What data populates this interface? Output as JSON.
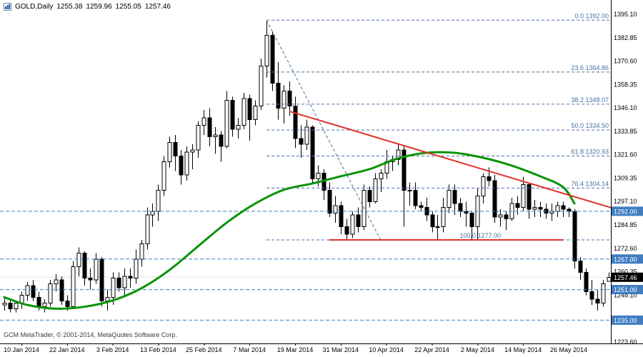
{
  "header": {
    "symbol_period": "GOLD,Daily",
    "open": "1255.38",
    "high": "1259.96",
    "low": "1255.05",
    "close": "1257.46"
  },
  "footer": {
    "copyright": "GCM MetaTrader, © 2001-2014, MetaQuotes Software Corp."
  },
  "colors": {
    "background": "#ffffff",
    "fib": "#4a6fa5",
    "level_line": "#3f7cc0",
    "tag_bg": "#3f7cc0",
    "tag_text": "#ffffff",
    "current_tag_bg": "#000000",
    "ma": "#089408",
    "trend": "#e03127",
    "axis_text": "#000000",
    "candle": "#000000",
    "candle_up_fill": "#ffffff"
  },
  "chart_data": {
    "type": "candlestick",
    "symbol": "GOLD",
    "timeframe": "Daily",
    "grid": "off",
    "current_price": {
      "value": 1257.46,
      "tag": "1257.46"
    },
    "y_axis": {
      "max_price": 1395.1,
      "min_price": 1223.6,
      "labels": [
        "1395.10",
        "1382.85",
        "1370.60",
        "1358.35",
        "1346.10",
        "1333.85",
        "1321.60",
        "1309.35",
        "1297.10",
        "1284.85",
        "1272.60",
        "1260.35",
        "1248.10",
        "1235.85",
        "1223.60"
      ]
    },
    "x_axis": {
      "labels": [
        {
          "text": "10 Jan 2014",
          "i": 3
        },
        {
          "text": "22 Jan 2014",
          "i": 11
        },
        {
          "text": "3 Feb 2014",
          "i": 19
        },
        {
          "text": "13 Feb 2014",
          "i": 27
        },
        {
          "text": "25 Feb 2014",
          "i": 35
        },
        {
          "text": "7 Mar 2014",
          "i": 43
        },
        {
          "text": "19 Mar 2014",
          "i": 51
        },
        {
          "text": "31 Mar 2014",
          "i": 59
        },
        {
          "text": "10 Apr 2014",
          "i": 67
        },
        {
          "text": "22 Apr 2014",
          "i": 75
        },
        {
          "text": "2 May 2014",
          "i": 83
        },
        {
          "text": "14 May 2014",
          "i": 91
        },
        {
          "text": "26 May 2014",
          "i": 99
        }
      ]
    },
    "fibonacci": {
      "anchor1": {
        "i": 46,
        "price": 1392.0
      },
      "anchor2": {
        "i": 66,
        "price": 1277.0
      },
      "levels": [
        {
          "label": "0.0 1392.00",
          "price": 1392.0
        },
        {
          "label": "23.6 1364.86",
          "price": 1364.86
        },
        {
          "label": "38.2 1348.07",
          "price": 1348.07
        },
        {
          "label": "50.0 1334.50",
          "price": 1334.5
        },
        {
          "label": "61.8 1320.93",
          "price": 1320.93
        },
        {
          "label": "76.4 1304.14",
          "price": 1304.14
        },
        {
          "label": "100.0 1277.00",
          "price": 1277.0,
          "label_x": 701
        }
      ]
    },
    "horizontal_levels": [
      {
        "price": 1292.0,
        "tag": "1292.00"
      },
      {
        "price": 1267.0,
        "tag": "1267.00"
      },
      {
        "price": 1251.0,
        "tag": "1251.00"
      },
      {
        "price": 1235.0,
        "tag": "1235.00"
      }
    ],
    "support_line": {
      "price": 1277.0,
      "i1": 57,
      "i2": 98
    },
    "trend_line": {
      "i1": 50,
      "p1": 1344.3,
      "i2": 106.5,
      "p2": 1293.8
    },
    "ma": {
      "points": [
        [
          0,
          1247
        ],
        [
          4,
          1243
        ],
        [
          9,
          1241
        ],
        [
          14,
          1242
        ],
        [
          19,
          1245.3
        ],
        [
          24,
          1251.6
        ],
        [
          29,
          1261.3
        ],
        [
          34,
          1273.7
        ],
        [
          39,
          1286
        ],
        [
          44,
          1296
        ],
        [
          49,
          1303.2
        ],
        [
          54,
          1306.5
        ],
        [
          59,
          1310.3
        ],
        [
          64,
          1314
        ],
        [
          69,
          1319.6
        ],
        [
          74,
          1322.6
        ],
        [
          79,
          1322.6
        ],
        [
          84,
          1320
        ],
        [
          89,
          1315.9
        ],
        [
          94,
          1310.3
        ],
        [
          98,
          1304.7
        ],
        [
          100,
          1296.1
        ]
      ]
    },
    "candles_columns": [
      "date",
      "open",
      "high",
      "low",
      "close"
    ],
    "candles": [
      [
        "7 Jan 2014",
        1243,
        1247,
        1240,
        1244
      ],
      [
        "8 Jan 2014",
        1244,
        1246,
        1239,
        1241
      ],
      [
        "9 Jan 2014",
        1241,
        1245,
        1239,
        1244
      ],
      [
        "10 Jan 2014",
        1244,
        1250,
        1241,
        1248
      ],
      [
        "13 Jan 2014",
        1248,
        1255,
        1245,
        1253
      ],
      [
        "14 Jan 2014",
        1253,
        1256,
        1245,
        1247
      ],
      [
        "15 Jan 2014",
        1247,
        1250,
        1240,
        1242
      ],
      [
        "16 Jan 2014",
        1242,
        1246,
        1239,
        1244
      ],
      [
        "17 Jan 2014",
        1244,
        1256,
        1242,
        1254
      ],
      [
        "20 Jan 2014",
        1254,
        1259,
        1250,
        1256
      ],
      [
        "21 Jan 2014",
        1256,
        1258,
        1243,
        1245
      ],
      [
        "22 Jan 2014",
        1245,
        1248,
        1240,
        1242
      ],
      [
        "23 Jan 2014",
        1242,
        1266,
        1241,
        1263
      ],
      [
        "24 Jan 2014",
        1263,
        1273,
        1258,
        1270
      ],
      [
        "27 Jan 2014",
        1270,
        1271,
        1253,
        1257
      ],
      [
        "28 Jan 2014",
        1257,
        1262,
        1251,
        1256
      ],
      [
        "29 Jan 2014",
        1256,
        1270,
        1254,
        1267
      ],
      [
        "30 Jan 2014",
        1267,
        1268,
        1242,
        1245
      ],
      [
        "31 Jan 2014",
        1245,
        1251,
        1240,
        1247
      ],
      [
        "3 Feb 2014",
        1247,
        1260,
        1243,
        1257
      ],
      [
        "4 Feb 2014",
        1257,
        1260,
        1250,
        1252
      ],
      [
        "5 Feb 2014",
        1252,
        1262,
        1248,
        1258
      ],
      [
        "6 Feb 2014",
        1258,
        1262,
        1252,
        1257
      ],
      [
        "7 Feb 2014",
        1257,
        1272,
        1254,
        1267
      ],
      [
        "10 Feb 2014",
        1267,
        1277,
        1263,
        1275
      ],
      [
        "11 Feb 2014",
        1275,
        1294,
        1272,
        1290
      ],
      [
        "12 Feb 2014",
        1290,
        1296,
        1284,
        1292
      ],
      [
        "13 Feb 2014",
        1292,
        1306,
        1287,
        1303
      ],
      [
        "14 Feb 2014",
        1303,
        1321,
        1300,
        1318
      ],
      [
        "17 Feb 2014",
        1318,
        1331,
        1315,
        1328
      ],
      [
        "18 Feb 2014",
        1328,
        1332,
        1313,
        1321
      ],
      [
        "19 Feb 2014",
        1321,
        1324,
        1306,
        1311
      ],
      [
        "20 Feb 2014",
        1311,
        1326,
        1308,
        1323
      ],
      [
        "21 Feb 2014",
        1323,
        1327,
        1314,
        1324
      ],
      [
        "24 Feb 2014",
        1324,
        1339,
        1320,
        1337
      ],
      [
        "25 Feb 2014",
        1337,
        1345,
        1332,
        1341
      ],
      [
        "26 Feb 2014",
        1341,
        1346,
        1326,
        1331
      ],
      [
        "27 Feb 2014",
        1331,
        1336,
        1322,
        1332
      ],
      [
        "28 Feb 2014",
        1332,
        1334,
        1318,
        1326
      ],
      [
        "3 Mar 2014",
        1326,
        1355,
        1325,
        1350
      ],
      [
        "4 Mar 2014",
        1350,
        1352,
        1331,
        1335
      ],
      [
        "5 Mar 2014",
        1335,
        1341,
        1330,
        1337
      ],
      [
        "6 Mar 2014",
        1337,
        1354,
        1335,
        1351
      ],
      [
        "7 Mar 2014",
        1351,
        1353,
        1329,
        1340
      ],
      [
        "10 Mar 2014",
        1340,
        1350,
        1337,
        1347
      ],
      [
        "11 Mar 2014",
        1347,
        1372,
        1345,
        1368
      ],
      [
        "12 Mar 2014",
        1368,
        1392,
        1362,
        1384
      ],
      [
        "13 Mar 2014",
        1384,
        1386,
        1355,
        1359
      ],
      [
        "14 Mar 2014",
        1359,
        1370,
        1340,
        1346
      ],
      [
        "17 Mar 2014",
        1346,
        1358,
        1338,
        1355
      ],
      [
        "18 Mar 2014",
        1355,
        1360,
        1342,
        1347
      ],
      [
        "19 Mar 2014",
        1347,
        1352,
        1325,
        1330
      ],
      [
        "20 Mar 2014",
        1330,
        1337,
        1320,
        1327
      ],
      [
        "21 Mar 2014",
        1327,
        1340,
        1324,
        1336
      ],
      [
        "24 Mar 2014",
        1336,
        1337,
        1306,
        1309
      ],
      [
        "25 Mar 2014",
        1309,
        1316,
        1305,
        1312
      ],
      [
        "26 Mar 2014",
        1312,
        1314,
        1298,
        1303
      ],
      [
        "27 Mar 2014",
        1303,
        1307,
        1289,
        1291
      ],
      [
        "28 Mar 2014",
        1291,
        1300,
        1286,
        1295
      ],
      [
        "31 Mar 2014",
        1295,
        1297,
        1280,
        1284
      ],
      [
        "1 Apr 2014",
        1284,
        1288,
        1277,
        1280
      ],
      [
        "2 Apr 2014",
        1280,
        1292,
        1278,
        1290
      ],
      [
        "3 Apr 2014",
        1290,
        1294,
        1281,
        1284
      ],
      [
        "4 Apr 2014",
        1284,
        1306,
        1282,
        1303
      ],
      [
        "7 Apr 2014",
        1303,
        1305,
        1294,
        1297
      ],
      [
        "8 Apr 2014",
        1297,
        1312,
        1296,
        1309
      ],
      [
        "9 Apr 2014",
        1309,
        1314,
        1302,
        1312
      ],
      [
        "10 Apr 2014",
        1312,
        1324,
        1309,
        1318
      ],
      [
        "11 Apr 2014",
        1318,
        1321,
        1313,
        1319
      ],
      [
        "14 Apr 2014",
        1319,
        1327,
        1316,
        1324
      ],
      [
        "15 Apr 2014",
        1324,
        1326,
        1284,
        1303
      ],
      [
        "16 Apr 2014",
        1303,
        1307,
        1295,
        1303
      ],
      [
        "17 Apr 2014",
        1303,
        1307,
        1293,
        1295
      ],
      [
        "18 Apr 2014",
        1295,
        1297,
        1292,
        1294
      ],
      [
        "21 Apr 2014",
        1294,
        1299,
        1287,
        1290
      ],
      [
        "22 Apr 2014",
        1290,
        1292,
        1281,
        1284
      ],
      [
        "23 Apr 2014",
        1284,
        1290,
        1277,
        1284
      ],
      [
        "24 Apr 2014",
        1284,
        1299,
        1281,
        1294
      ],
      [
        "25 Apr 2014",
        1294,
        1306,
        1291,
        1303
      ],
      [
        "28 Apr 2014",
        1303,
        1306,
        1290,
        1296
      ],
      [
        "29 Apr 2014",
        1296,
        1299,
        1289,
        1292
      ],
      [
        "30 Apr 2014",
        1292,
        1297,
        1284,
        1291
      ],
      [
        "1 May 2014",
        1291,
        1292,
        1277,
        1284
      ],
      [
        "2 May 2014",
        1284,
        1304,
        1277,
        1300
      ],
      [
        "5 May 2014",
        1300,
        1312,
        1296,
        1310
      ],
      [
        "6 May 2014",
        1310,
        1315,
        1305,
        1308
      ],
      [
        "7 May 2014",
        1308,
        1311,
        1286,
        1289
      ],
      [
        "8 May 2014",
        1289,
        1293,
        1284,
        1290
      ],
      [
        "9 May 2014",
        1290,
        1292,
        1282,
        1288
      ],
      [
        "12 May 2014",
        1288,
        1299,
        1287,
        1296
      ],
      [
        "13 May 2014",
        1296,
        1300,
        1290,
        1294
      ],
      [
        "14 May 2014",
        1294,
        1310,
        1292,
        1306
      ],
      [
        "15 May 2014",
        1306,
        1307,
        1288,
        1293
      ],
      [
        "16 May 2014",
        1293,
        1298,
        1289,
        1294
      ],
      [
        "19 May 2014",
        1294,
        1297,
        1289,
        1293
      ],
      [
        "20 May 2014",
        1293,
        1296,
        1288,
        1291
      ],
      [
        "21 May 2014",
        1291,
        1296,
        1287,
        1292
      ],
      [
        "22 May 2014",
        1292,
        1297,
        1289,
        1295
      ],
      [
        "23 May 2014",
        1295,
        1297,
        1289,
        1293
      ],
      [
        "26 May 2014",
        1293,
        1294,
        1289,
        1292
      ],
      [
        "27 May 2014",
        1292,
        1293,
        1262,
        1266
      ],
      [
        "28 May 2014",
        1266,
        1268,
        1256,
        1260
      ],
      [
        "29 May 2014",
        1260,
        1262,
        1248,
        1250
      ],
      [
        "30 May 2014",
        1250,
        1256,
        1243,
        1246
      ],
      [
        "2 Jun 2014",
        1246,
        1251,
        1240,
        1244
      ],
      [
        "3 Jun 2014",
        1244,
        1256,
        1242,
        1254
      ],
      [
        "4 Jun 2014",
        1255.38,
        1259.96,
        1255.05,
        1257.46
      ]
    ]
  }
}
